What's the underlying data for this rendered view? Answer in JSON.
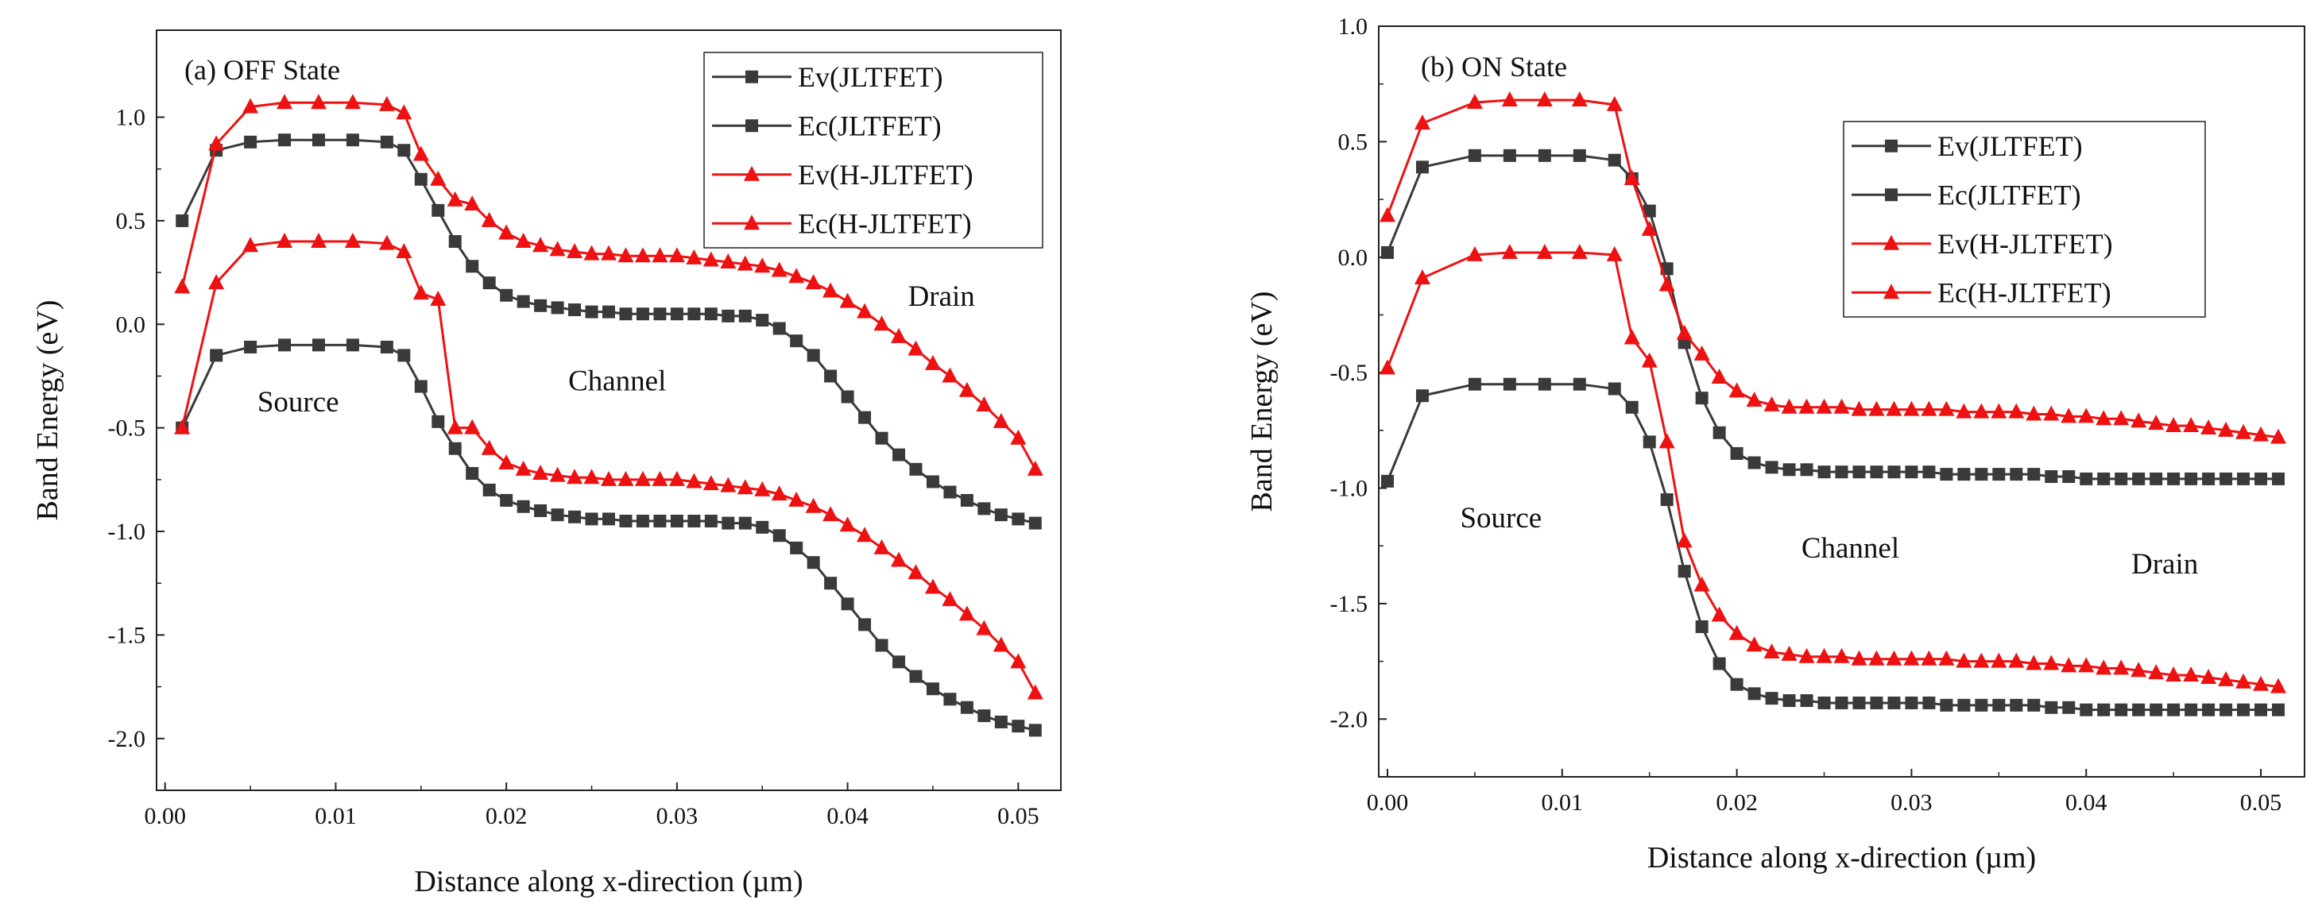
{
  "chart_data": [
    {
      "type": "line",
      "panel_title": "(a)  OFF State",
      "xlabel": "Distance along x-direction (µm)",
      "ylabel": "Band Energy (eV)",
      "xlim": [
        -0.0005,
        0.0525
      ],
      "ylim": [
        -2.25,
        1.42
      ],
      "x_ticks": [
        0.0,
        0.01,
        0.02,
        0.03,
        0.04,
        0.05
      ],
      "x_tick_labels": [
        "0.00",
        "0.01",
        "0.02",
        "0.03",
        "0.04",
        "0.05"
      ],
      "y_ticks": [
        1.0,
        0.5,
        0.0,
        -0.5,
        -1.0,
        -1.5,
        -2.0
      ],
      "y_tick_labels": [
        "1.0",
        "0.5",
        "0.0",
        "-0.5",
        "-1.0",
        "-1.5",
        "-2.0"
      ],
      "legend_position": "top-right",
      "annotations": [
        {
          "text": "Source",
          "x": 0.0078,
          "y": -0.42
        },
        {
          "text": "Channel",
          "x": 0.0265,
          "y": -0.32
        },
        {
          "text": "Drain",
          "x": 0.0455,
          "y": 0.09
        }
      ],
      "series": [
        {
          "name": "Ev(JLTFET)",
          "color": "#3a3a3a",
          "marker": "square",
          "x": [
            0.001,
            0.003,
            0.005,
            0.007,
            0.009,
            0.011,
            0.013,
            0.014,
            0.015,
            0.016,
            0.017,
            0.018,
            0.019,
            0.02,
            0.021,
            0.022,
            0.023,
            0.024,
            0.025,
            0.026,
            0.027,
            0.028,
            0.029,
            0.03,
            0.031,
            0.032,
            0.033,
            0.034,
            0.035,
            0.036,
            0.037,
            0.038,
            0.039,
            0.04,
            0.041,
            0.042,
            0.043,
            0.044,
            0.045,
            0.046,
            0.047,
            0.048,
            0.049,
            0.05,
            0.051
          ],
          "y": [
            -0.5,
            -0.15,
            -0.11,
            -0.1,
            -0.1,
            -0.1,
            -0.11,
            -0.15,
            -0.3,
            -0.47,
            -0.6,
            -0.72,
            -0.8,
            -0.85,
            -0.88,
            -0.9,
            -0.92,
            -0.93,
            -0.94,
            -0.94,
            -0.95,
            -0.95,
            -0.95,
            -0.95,
            -0.95,
            -0.95,
            -0.96,
            -0.96,
            -0.98,
            -1.02,
            -1.08,
            -1.15,
            -1.25,
            -1.35,
            -1.45,
            -1.55,
            -1.63,
            -1.7,
            -1.76,
            -1.81,
            -1.85,
            -1.89,
            -1.92,
            -1.94,
            -1.96
          ]
        },
        {
          "name": "Ec(JLTFET)",
          "color": "#3a3a3a",
          "marker": "square",
          "x": [
            0.001,
            0.003,
            0.005,
            0.007,
            0.009,
            0.011,
            0.013,
            0.014,
            0.015,
            0.016,
            0.017,
            0.018,
            0.019,
            0.02,
            0.021,
            0.022,
            0.023,
            0.024,
            0.025,
            0.026,
            0.027,
            0.028,
            0.029,
            0.03,
            0.031,
            0.032,
            0.033,
            0.034,
            0.035,
            0.036,
            0.037,
            0.038,
            0.039,
            0.04,
            0.041,
            0.042,
            0.043,
            0.044,
            0.045,
            0.046,
            0.047,
            0.048,
            0.049,
            0.05,
            0.051
          ],
          "y": [
            0.5,
            0.84,
            0.88,
            0.89,
            0.89,
            0.89,
            0.88,
            0.84,
            0.7,
            0.55,
            0.4,
            0.28,
            0.2,
            0.14,
            0.11,
            0.09,
            0.08,
            0.07,
            0.06,
            0.06,
            0.05,
            0.05,
            0.05,
            0.05,
            0.05,
            0.05,
            0.04,
            0.04,
            0.02,
            -0.02,
            -0.08,
            -0.15,
            -0.25,
            -0.35,
            -0.45,
            -0.55,
            -0.63,
            -0.7,
            -0.76,
            -0.81,
            -0.85,
            -0.89,
            -0.92,
            -0.94,
            -0.96
          ]
        },
        {
          "name": "Ev(H-JLTFET)",
          "color": "#ee1111",
          "marker": "triangle",
          "x": [
            0.001,
            0.003,
            0.005,
            0.007,
            0.009,
            0.011,
            0.013,
            0.014,
            0.015,
            0.016,
            0.017,
            0.018,
            0.019,
            0.02,
            0.021,
            0.022,
            0.023,
            0.024,
            0.025,
            0.026,
            0.027,
            0.028,
            0.029,
            0.03,
            0.031,
            0.032,
            0.033,
            0.034,
            0.035,
            0.036,
            0.037,
            0.038,
            0.039,
            0.04,
            0.041,
            0.042,
            0.043,
            0.044,
            0.045,
            0.046,
            0.047,
            0.048,
            0.049,
            0.05,
            0.051
          ],
          "y": [
            -0.5,
            0.2,
            0.38,
            0.4,
            0.4,
            0.4,
            0.39,
            0.35,
            0.15,
            0.12,
            -0.5,
            -0.5,
            -0.6,
            -0.67,
            -0.7,
            -0.72,
            -0.73,
            -0.74,
            -0.74,
            -0.75,
            -0.75,
            -0.75,
            -0.75,
            -0.75,
            -0.76,
            -0.77,
            -0.78,
            -0.79,
            -0.8,
            -0.82,
            -0.85,
            -0.88,
            -0.92,
            -0.97,
            -1.02,
            -1.08,
            -1.14,
            -1.2,
            -1.27,
            -1.33,
            -1.4,
            -1.47,
            -1.55,
            -1.63,
            -1.78
          ]
        },
        {
          "name": "Ec(H-JLTFET)",
          "color": "#ee1111",
          "marker": "triangle",
          "x": [
            0.001,
            0.003,
            0.005,
            0.007,
            0.009,
            0.011,
            0.013,
            0.014,
            0.015,
            0.016,
            0.017,
            0.018,
            0.019,
            0.02,
            0.021,
            0.022,
            0.023,
            0.024,
            0.025,
            0.026,
            0.027,
            0.028,
            0.029,
            0.03,
            0.031,
            0.032,
            0.033,
            0.034,
            0.035,
            0.036,
            0.037,
            0.038,
            0.039,
            0.04,
            0.041,
            0.042,
            0.043,
            0.044,
            0.045,
            0.046,
            0.047,
            0.048,
            0.049,
            0.05,
            0.051
          ],
          "y": [
            0.18,
            0.87,
            1.05,
            1.07,
            1.07,
            1.07,
            1.06,
            1.02,
            0.82,
            0.7,
            0.6,
            0.58,
            0.5,
            0.44,
            0.4,
            0.38,
            0.36,
            0.35,
            0.34,
            0.34,
            0.33,
            0.33,
            0.33,
            0.33,
            0.32,
            0.31,
            0.3,
            0.29,
            0.28,
            0.26,
            0.23,
            0.2,
            0.16,
            0.11,
            0.06,
            0.0,
            -0.06,
            -0.12,
            -0.19,
            -0.25,
            -0.32,
            -0.39,
            -0.47,
            -0.55,
            -0.7
          ]
        }
      ]
    },
    {
      "type": "line",
      "panel_title": "(b)  ON State",
      "xlabel": "Distance along x-direction (µm)",
      "ylabel": "Band Energy (eV)",
      "xlim": [
        -0.0005,
        0.0525
      ],
      "ylim": [
        -2.25,
        1.0
      ],
      "x_ticks": [
        0.0,
        0.01,
        0.02,
        0.03,
        0.04,
        0.05
      ],
      "x_tick_labels": [
        "0.00",
        "0.01",
        "0.02",
        "0.03",
        "0.04",
        "0.05"
      ],
      "y_ticks": [
        1.0,
        0.5,
        0.0,
        -0.5,
        -1.0,
        -1.5,
        -2.0
      ],
      "y_tick_labels": [
        "1.0",
        "0.5",
        "0.0",
        "-0.5",
        "-1.0",
        "-1.5",
        "-2.0"
      ],
      "legend_position": "top-right",
      "annotations": [
        {
          "text": "Source",
          "x": 0.0065,
          "y": -1.17
        },
        {
          "text": "Channel",
          "x": 0.0265,
          "y": -1.3
        },
        {
          "text": "Drain",
          "x": 0.0445,
          "y": -1.37
        }
      ],
      "series": [
        {
          "name": "Ev(JLTFET)",
          "color": "#3a3a3a",
          "marker": "square",
          "x": [
            0.0,
            0.002,
            0.005,
            0.007,
            0.009,
            0.011,
            0.013,
            0.014,
            0.015,
            0.016,
            0.017,
            0.018,
            0.019,
            0.02,
            0.021,
            0.022,
            0.023,
            0.024,
            0.025,
            0.026,
            0.027,
            0.028,
            0.029,
            0.03,
            0.031,
            0.032,
            0.033,
            0.034,
            0.035,
            0.036,
            0.037,
            0.038,
            0.039,
            0.04,
            0.041,
            0.042,
            0.043,
            0.044,
            0.045,
            0.046,
            0.047,
            0.048,
            0.049,
            0.05,
            0.051
          ],
          "y": [
            -0.97,
            -0.6,
            -0.55,
            -0.55,
            -0.55,
            -0.55,
            -0.57,
            -0.65,
            -0.8,
            -1.05,
            -1.36,
            -1.6,
            -1.76,
            -1.85,
            -1.89,
            -1.91,
            -1.92,
            -1.92,
            -1.93,
            -1.93,
            -1.93,
            -1.93,
            -1.93,
            -1.93,
            -1.93,
            -1.94,
            -1.94,
            -1.94,
            -1.94,
            -1.94,
            -1.94,
            -1.95,
            -1.95,
            -1.96,
            -1.96,
            -1.96,
            -1.96,
            -1.96,
            -1.96,
            -1.96,
            -1.96,
            -1.96,
            -1.96,
            -1.96,
            -1.96
          ]
        },
        {
          "name": "Ec(JLTFET)",
          "color": "#3a3a3a",
          "marker": "square",
          "x": [
            0.0,
            0.002,
            0.005,
            0.007,
            0.009,
            0.011,
            0.013,
            0.014,
            0.015,
            0.016,
            0.017,
            0.018,
            0.019,
            0.02,
            0.021,
            0.022,
            0.023,
            0.024,
            0.025,
            0.026,
            0.027,
            0.028,
            0.029,
            0.03,
            0.031,
            0.032,
            0.033,
            0.034,
            0.035,
            0.036,
            0.037,
            0.038,
            0.039,
            0.04,
            0.041,
            0.042,
            0.043,
            0.044,
            0.045,
            0.046,
            0.047,
            0.048,
            0.049,
            0.05,
            0.051
          ],
          "y": [
            0.02,
            0.39,
            0.44,
            0.44,
            0.44,
            0.44,
            0.42,
            0.34,
            0.2,
            -0.05,
            -0.37,
            -0.61,
            -0.76,
            -0.85,
            -0.89,
            -0.91,
            -0.92,
            -0.92,
            -0.93,
            -0.93,
            -0.93,
            -0.93,
            -0.93,
            -0.93,
            -0.93,
            -0.94,
            -0.94,
            -0.94,
            -0.94,
            -0.94,
            -0.94,
            -0.95,
            -0.95,
            -0.96,
            -0.96,
            -0.96,
            -0.96,
            -0.96,
            -0.96,
            -0.96,
            -0.96,
            -0.96,
            -0.96,
            -0.96,
            -0.96
          ]
        },
        {
          "name": "Ev(H-JLTFET)",
          "color": "#ee1111",
          "marker": "triangle",
          "x": [
            0.0,
            0.002,
            0.005,
            0.007,
            0.009,
            0.011,
            0.013,
            0.014,
            0.015,
            0.016,
            0.017,
            0.018,
            0.019,
            0.02,
            0.021,
            0.022,
            0.023,
            0.024,
            0.025,
            0.026,
            0.027,
            0.028,
            0.029,
            0.03,
            0.031,
            0.032,
            0.033,
            0.034,
            0.035,
            0.036,
            0.037,
            0.038,
            0.039,
            0.04,
            0.041,
            0.042,
            0.043,
            0.044,
            0.045,
            0.046,
            0.047,
            0.048,
            0.049,
            0.05,
            0.051
          ],
          "y": [
            -0.48,
            -0.09,
            0.01,
            0.02,
            0.02,
            0.02,
            0.01,
            -0.35,
            -0.45,
            -0.8,
            -1.23,
            -1.42,
            -1.55,
            -1.63,
            -1.68,
            -1.71,
            -1.72,
            -1.73,
            -1.73,
            -1.73,
            -1.74,
            -1.74,
            -1.74,
            -1.74,
            -1.74,
            -1.74,
            -1.75,
            -1.75,
            -1.75,
            -1.75,
            -1.76,
            -1.76,
            -1.77,
            -1.77,
            -1.78,
            -1.78,
            -1.79,
            -1.8,
            -1.81,
            -1.81,
            -1.82,
            -1.83,
            -1.84,
            -1.85,
            -1.86
          ]
        },
        {
          "name": "Ec(H-JLTFET)",
          "color": "#ee1111",
          "marker": "triangle",
          "x": [
            0.0,
            0.002,
            0.005,
            0.007,
            0.009,
            0.011,
            0.013,
            0.014,
            0.015,
            0.016,
            0.017,
            0.018,
            0.019,
            0.02,
            0.021,
            0.022,
            0.023,
            0.024,
            0.025,
            0.026,
            0.027,
            0.028,
            0.029,
            0.03,
            0.031,
            0.032,
            0.033,
            0.034,
            0.035,
            0.036,
            0.037,
            0.038,
            0.039,
            0.04,
            0.041,
            0.042,
            0.043,
            0.044,
            0.045,
            0.046,
            0.047,
            0.048,
            0.049,
            0.05,
            0.051
          ],
          "y": [
            0.18,
            0.58,
            0.67,
            0.68,
            0.68,
            0.68,
            0.66,
            0.34,
            0.12,
            -0.12,
            -0.33,
            -0.42,
            -0.52,
            -0.58,
            -0.62,
            -0.64,
            -0.65,
            -0.65,
            -0.65,
            -0.65,
            -0.66,
            -0.66,
            -0.66,
            -0.66,
            -0.66,
            -0.66,
            -0.67,
            -0.67,
            -0.67,
            -0.67,
            -0.68,
            -0.68,
            -0.69,
            -0.69,
            -0.7,
            -0.7,
            -0.71,
            -0.72,
            -0.73,
            -0.73,
            -0.74,
            -0.75,
            -0.76,
            -0.77,
            -0.78
          ]
        }
      ]
    }
  ]
}
